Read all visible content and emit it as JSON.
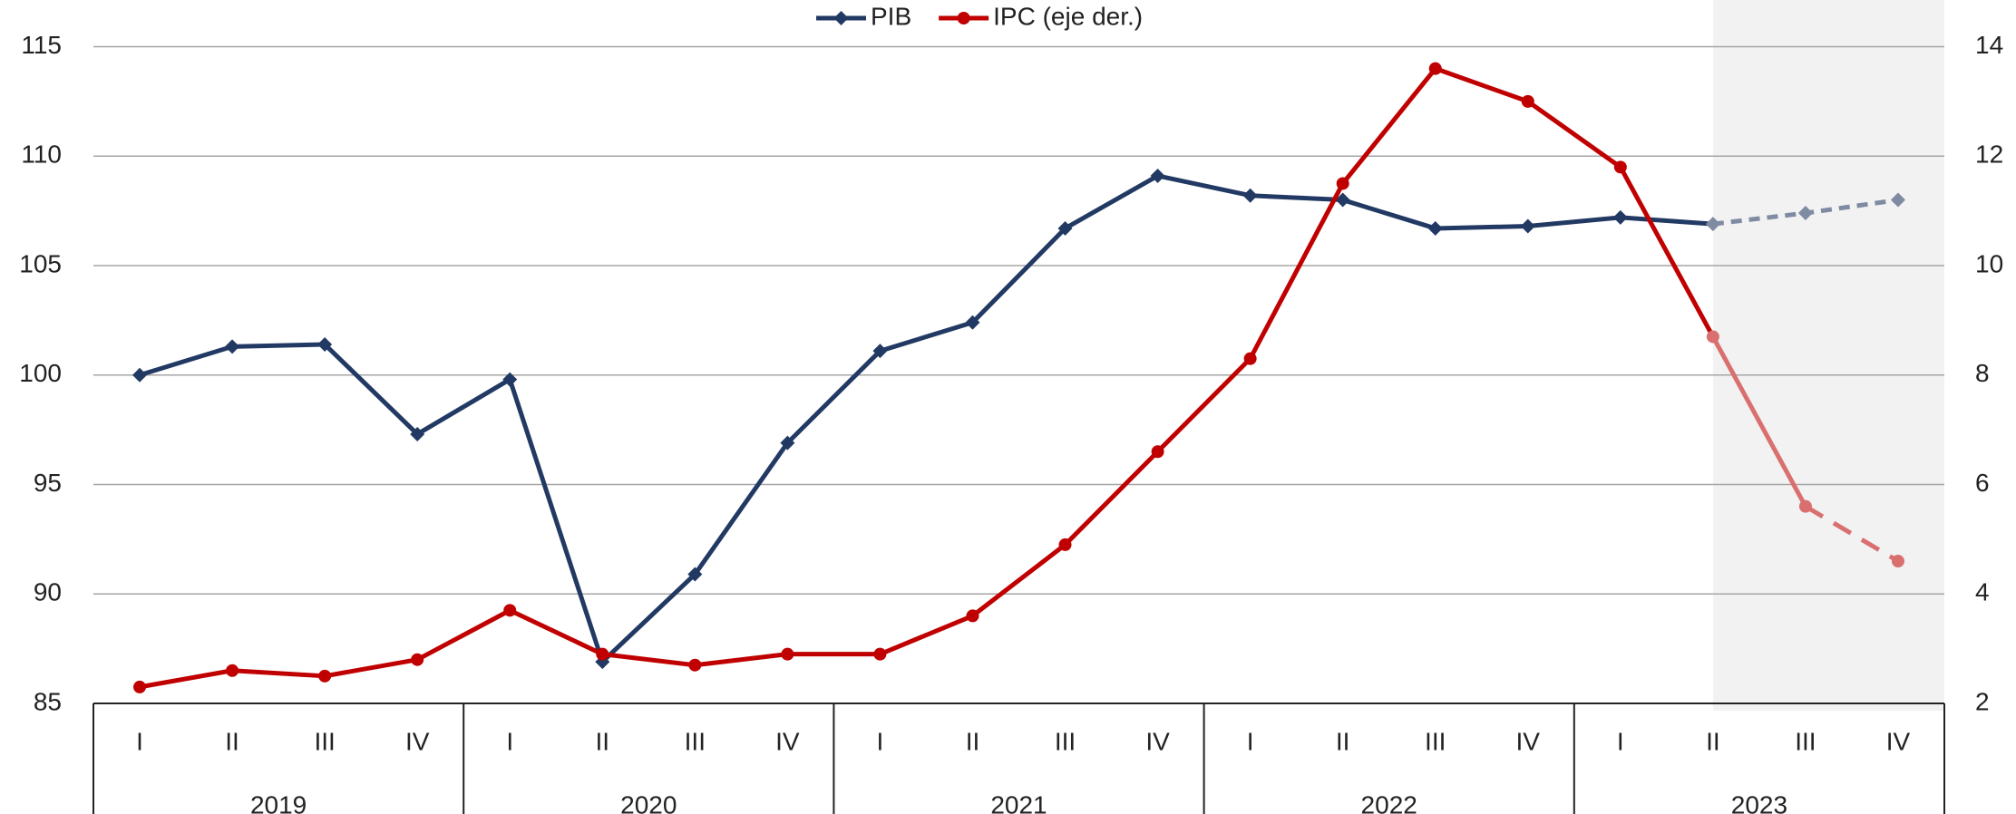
{
  "chart_data": {
    "type": "line",
    "categories": [
      "I",
      "II",
      "III",
      "IV",
      "I",
      "II",
      "III",
      "IV",
      "I",
      "II",
      "III",
      "IV",
      "I",
      "II",
      "III",
      "IV",
      "I",
      "II",
      "III",
      "IV"
    ],
    "category_groups": [
      "2019",
      "2020",
      "2021",
      "2022",
      "2023"
    ],
    "series": [
      {
        "name": "PIB",
        "color": "#223a63",
        "forecast_color": "#7f8aa3",
        "marker": "diamond",
        "values": [
          100.0,
          101.3,
          101.4,
          97.3,
          99.8,
          86.9,
          90.9,
          96.9,
          101.1,
          102.4,
          106.7,
          109.1,
          108.2,
          108.0,
          106.7,
          106.8,
          107.2,
          106.9,
          107.4,
          108.0
        ]
      },
      {
        "name": "IPC (eje der.)",
        "color": "#c00000",
        "forecast_color": "#d9706f",
        "marker": "circle",
        "axis": "y2",
        "values": [
          2.3,
          2.6,
          2.5,
          2.8,
          3.7,
          2.9,
          2.7,
          2.9,
          2.9,
          3.6,
          4.9,
          6.6,
          8.3,
          11.5,
          13.6,
          13.0,
          11.8,
          8.7,
          5.6,
          4.6
        ]
      }
    ],
    "forecast_start": 17,
    "ylim": [
      85,
      115
    ],
    "yticks": [
      85,
      90,
      95,
      100,
      105,
      110,
      115
    ],
    "y2lim": [
      2,
      14
    ],
    "y2ticks": [
      2,
      4,
      6,
      8,
      10,
      12,
      14
    ],
    "grid": true,
    "legend": "top"
  }
}
